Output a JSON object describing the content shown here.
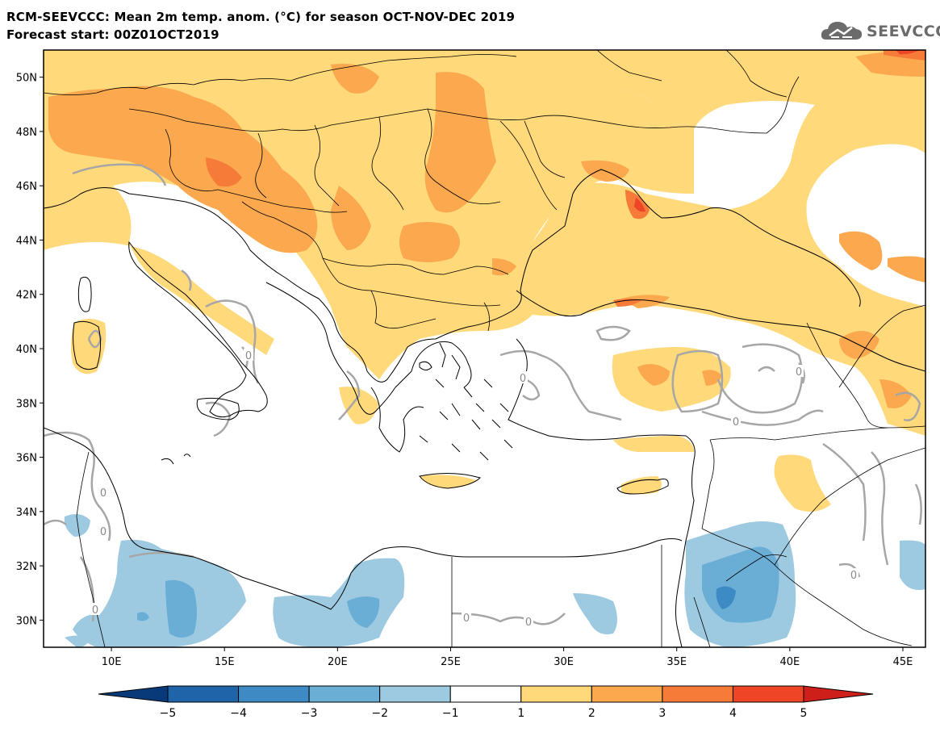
{
  "header": {
    "title_line1": "RCM-SEEVCCC: Mean 2m temp. anom. (°C) for season OCT-NOV-DEC 2019",
    "title_line2": "Forecast start: 00Z01OCT2019",
    "logo_text": "SEEVCCC",
    "logo_icon": "cloud-icon"
  },
  "map": {
    "lon_range": [
      7,
      46
    ],
    "lat_range": [
      29,
      51
    ],
    "lat_ticks": [
      {
        "value": 50,
        "label": "50N"
      },
      {
        "value": 48,
        "label": "48N"
      },
      {
        "value": 46,
        "label": "46N"
      },
      {
        "value": 44,
        "label": "44N"
      },
      {
        "value": 42,
        "label": "42N"
      },
      {
        "value": 40,
        "label": "40N"
      },
      {
        "value": 38,
        "label": "38N"
      },
      {
        "value": 36,
        "label": "36N"
      },
      {
        "value": 34,
        "label": "34N"
      },
      {
        "value": 32,
        "label": "32N"
      },
      {
        "value": 30,
        "label": "30N"
      }
    ],
    "lon_ticks": [
      {
        "value": 10,
        "label": "10E"
      },
      {
        "value": 15,
        "label": "15E"
      },
      {
        "value": 20,
        "label": "20E"
      },
      {
        "value": 25,
        "label": "25E"
      },
      {
        "value": 30,
        "label": "30E"
      },
      {
        "value": 35,
        "label": "35E"
      },
      {
        "value": 40,
        "label": "40E"
      },
      {
        "value": 45,
        "label": "45E"
      }
    ],
    "contour_label": "0",
    "colors": {
      "anom_1_2": "#ffd97a",
      "anom_2_3": "#fba84e",
      "anom_3_4": "#f77b38",
      "anom_4_5": "#ee4527",
      "anom_m1_m2": "#9ecae1",
      "anom_m2_m3": "#6aaed6",
      "anom_m3_m4": "#3e8ac4",
      "coast": "#000000",
      "zero_contour": "#a6a6a6"
    }
  },
  "colorbar": {
    "labels": [
      "-5",
      "-4",
      "-3",
      "-2",
      "-1",
      "1",
      "2",
      "3",
      "4",
      "5"
    ],
    "colors": [
      "#083a7a",
      "#1f63a8",
      "#3e8ac4",
      "#6aaed6",
      "#9ecae1",
      "#ffffff",
      "#ffd97a",
      "#fba84e",
      "#f77b38",
      "#ee4527",
      "#cf1f1a"
    ]
  }
}
